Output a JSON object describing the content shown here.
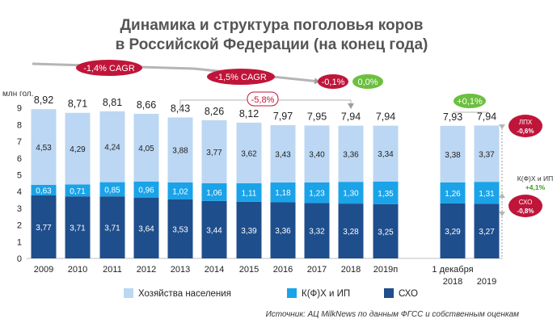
{
  "chart_data": {
    "type": "bar",
    "stacked": true,
    "title": "Динамика и структура поголовья коров",
    "subtitle": "в Российской Федерации (на конец года)",
    "ylabel": "млн гол.",
    "ylim": [
      0,
      9
    ],
    "yticks": [
      "0",
      "1",
      "2",
      "3",
      "4",
      "5",
      "6",
      "7",
      "8",
      "9"
    ],
    "grid": false,
    "legend_position": "bottom",
    "categories": [
      "2009",
      "2010",
      "2011",
      "2012",
      "2013",
      "2014",
      "2015",
      "2016",
      "2017",
      "2018",
      "2019п",
      "1 декабря 2018",
      "1 декабря 2019"
    ],
    "category_labels": [
      [
        "2009"
      ],
      [
        "2010"
      ],
      [
        "2011"
      ],
      [
        "2012"
      ],
      [
        "2013"
      ],
      [
        "2014"
      ],
      [
        "2015"
      ],
      [
        "2016"
      ],
      [
        "2017"
      ],
      [
        "2018"
      ],
      [
        "2019п"
      ],
      [
        "1 декабря",
        "2018"
      ],
      [
        "2019"
      ]
    ],
    "series": [
      {
        "name": "СХО",
        "color": "#1f4e8c",
        "values": [
          3.77,
          3.71,
          3.71,
          3.64,
          3.53,
          3.44,
          3.39,
          3.36,
          3.32,
          3.28,
          3.25,
          3.29,
          3.27
        ],
        "labels": [
          "3,77",
          "3,71",
          "3,71",
          "3,64",
          "3,53",
          "3,44",
          "3,39",
          "3,36",
          "3,32",
          "3,28",
          "3,25",
          "3,29",
          "3,27"
        ]
      },
      {
        "name": "К(Ф)Х и ИП",
        "color": "#1aa3e8",
        "values": [
          0.63,
          0.71,
          0.85,
          0.96,
          1.02,
          1.06,
          1.11,
          1.18,
          1.23,
          1.3,
          1.35,
          1.26,
          1.31
        ],
        "labels": [
          "0,63",
          "0,71",
          "0,85",
          "0,96",
          "1,02",
          "1,06",
          "1,11",
          "1,18",
          "1,23",
          "1,30",
          "1,35",
          "1,26",
          "1,31"
        ]
      },
      {
        "name": "Хозяйства населения",
        "color": "#bcd7f3",
        "values": [
          4.53,
          4.29,
          4.24,
          4.05,
          3.88,
          3.77,
          3.62,
          3.43,
          3.4,
          3.36,
          3.34,
          3.38,
          3.37
        ],
        "labels": [
          "4,53",
          "4,29",
          "4,24",
          "4,05",
          "3,88",
          "3,77",
          "3,62",
          "3,43",
          "3,40",
          "3,36",
          "3,34",
          "3,38",
          "3,37"
        ]
      }
    ],
    "totals": [
      "8,92",
      "8,71",
      "8,81",
      "8,66",
      "8,43",
      "8,26",
      "8,12",
      "7,97",
      "7,95",
      "7,94",
      "7,94",
      "7,93",
      "7,94"
    ],
    "annotations": {
      "cagr_2009_2019": "-1,4% CAGR",
      "cagr_2013_2018": "-1,5% CAGR",
      "change_2018_2019a": "-0,1%",
      "change_2018_2019b": "0,0%",
      "change_2013_2018": "-5,8%",
      "change_dec": "+0,1%",
      "lph_label": "ЛПХ",
      "lph_value": "-0,6%",
      "kfh_label": "К(Ф)Х и ИП",
      "kfh_value": "+4,1%",
      "sho_label": "СХО",
      "sho_value": "-0,8%"
    },
    "colors": {
      "red": "#c0153a",
      "green": "#6cbf3f",
      "arrow": "#9e9e9e"
    }
  },
  "source": "Источник: АЦ MilkNews по данным ФГСС и собственным оценкам"
}
